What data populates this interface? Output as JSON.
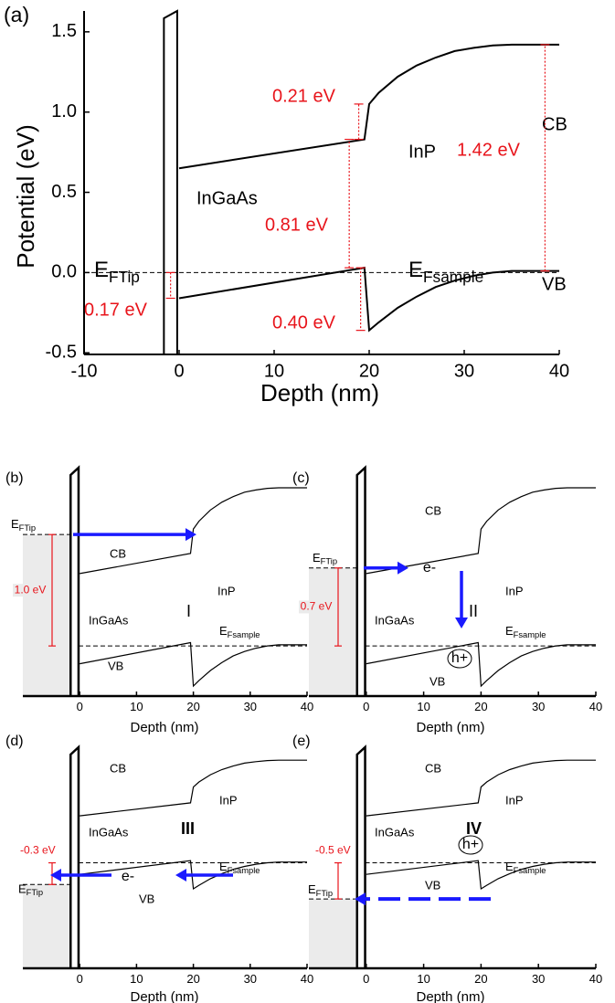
{
  "chart_data": [
    {
      "type": "line",
      "panel_label": "(a)",
      "x_label": "Depth (nm)",
      "y_label": "Potential (eV)",
      "xlim": [
        -10,
        40
      ],
      "xticks": [
        -10,
        0,
        10,
        20,
        30,
        40
      ],
      "ylim": [
        -0.51,
        1.63
      ],
      "yticks": [
        -0.5,
        {
          "value": 0,
          "label": "0.0"
        },
        0.5,
        {
          "value": 1,
          "label": "1.0"
        },
        1.5
      ],
      "x": [
        0,
        19.5,
        20,
        21,
        23,
        25,
        27,
        29,
        31,
        33,
        35,
        37,
        40
      ],
      "series": [
        {
          "name": "CB",
          "color": "#000000",
          "values": [
            0.65,
            0.83,
            1.05,
            1.12,
            1.22,
            1.29,
            1.34,
            1.38,
            1.4,
            1.415,
            1.42,
            1.42,
            1.42
          ]
        },
        {
          "name": "VB",
          "color": "#000000",
          "values": [
            -0.16,
            0.03,
            -0.36,
            -0.31,
            -0.22,
            -0.15,
            -0.09,
            -0.05,
            -0.02,
            0.0,
            0.01,
            0.01,
            0.01
          ]
        }
      ],
      "fermi_level": 0,
      "labels": {
        "ef_tip": [
          "E",
          "FTip"
        ],
        "ef_sample": [
          "E",
          "Fsample"
        ],
        "ingaas": "InGaAs",
        "inp": "InP"
      },
      "annotations": [
        "0.21 eV",
        "0.81 eV",
        "0.40 eV",
        "0.17 eV",
        "1.42 eV"
      ]
    },
    {
      "type": "line",
      "panel_label": "(b)",
      "x_label": "Depth (nm)",
      "xlim": [
        -10,
        40
      ],
      "xticks": [
        0,
        10,
        20,
        30,
        40
      ],
      "ylim": [
        -0.45,
        1.6
      ],
      "x": [
        0,
        19.5,
        20,
        21,
        23,
        25,
        27,
        29,
        31,
        33,
        35,
        37,
        40
      ],
      "series": [
        {
          "name": "CB",
          "color": "#000000",
          "values": [
            0.65,
            0.83,
            1.05,
            1.12,
            1.22,
            1.29,
            1.34,
            1.38,
            1.4,
            1.415,
            1.42,
            1.42,
            1.42
          ]
        },
        {
          "name": "VB",
          "color": "#000000",
          "values": [
            -0.16,
            0.03,
            -0.36,
            -0.31,
            -0.22,
            -0.15,
            -0.09,
            -0.05,
            -0.02,
            0.0,
            0.01,
            0.01,
            0.01
          ]
        }
      ],
      "fermi_level": 0,
      "tip_level": 1.0,
      "tip_label": "1.0 eV",
      "labels": {
        "ef_tip": [
          "E",
          "FTip"
        ],
        "ef_sample": [
          "E",
          "Fsample"
        ],
        "ingaas": "InGaAs",
        "inp": "InP",
        "stage": "I"
      },
      "carriers": []
    },
    {
      "type": "line",
      "panel_label": "(c)",
      "x_label": "Depth (nm)",
      "xlim": [
        -10,
        40
      ],
      "xticks": [
        0,
        10,
        20,
        30,
        40
      ],
      "ylim": [
        -0.45,
        1.6
      ],
      "x": [
        0,
        19.5,
        20,
        21,
        23,
        25,
        27,
        29,
        31,
        33,
        35,
        37,
        40
      ],
      "series": [
        {
          "name": "CB",
          "color": "#000000",
          "values": [
            0.65,
            0.83,
            1.05,
            1.12,
            1.22,
            1.29,
            1.34,
            1.38,
            1.4,
            1.415,
            1.42,
            1.42,
            1.42
          ]
        },
        {
          "name": "VB",
          "color": "#000000",
          "values": [
            -0.16,
            0.03,
            -0.36,
            -0.31,
            -0.22,
            -0.15,
            -0.09,
            -0.05,
            -0.02,
            0.0,
            0.01,
            0.01,
            0.01
          ]
        }
      ],
      "fermi_level": 0,
      "tip_level": 0.7,
      "tip_label": "0.7 eV",
      "labels": {
        "ef_tip": [
          "E",
          "FTip"
        ],
        "ef_sample": [
          "E",
          "Fsample"
        ],
        "ingaas": "InGaAs",
        "inp": "InP",
        "stage": "II"
      },
      "carriers": [
        "e-",
        "h+"
      ]
    },
    {
      "type": "line",
      "panel_label": "(d)",
      "x_label": "Depth (nm)",
      "xlim": [
        -10,
        40
      ],
      "xticks": [
        0,
        10,
        20,
        30,
        40
      ],
      "ylim": [
        -1.46,
        1.6
      ],
      "x": [
        0,
        19.5,
        20,
        21,
        23,
        25,
        27,
        29,
        31,
        33,
        35,
        37,
        40
      ],
      "series": [
        {
          "name": "CB",
          "color": "#000000",
          "values": [
            0.65,
            0.83,
            1.05,
            1.12,
            1.22,
            1.29,
            1.34,
            1.38,
            1.4,
            1.415,
            1.42,
            1.42,
            1.42
          ]
        },
        {
          "name": "VB",
          "color": "#000000",
          "values": [
            -0.16,
            0.03,
            -0.36,
            -0.31,
            -0.22,
            -0.15,
            -0.09,
            -0.05,
            -0.02,
            0.0,
            0.01,
            0.01,
            0.01
          ]
        }
      ],
      "fermi_level": 0,
      "tip_level": -0.3,
      "tip_label": "-0.3 eV",
      "labels": {
        "ef_tip": [
          "E",
          "FTip"
        ],
        "ef_sample": [
          "E",
          "Fsample"
        ],
        "ingaas": "InGaAs",
        "inp": "InP",
        "stage": "III"
      },
      "carriers": [
        "e-"
      ]
    },
    {
      "type": "line",
      "panel_label": "(e)",
      "x_label": "Depth (nm)",
      "xlim": [
        -10,
        40
      ],
      "xticks": [
        0,
        10,
        20,
        30,
        40
      ],
      "ylim": [
        -1.46,
        1.6
      ],
      "x": [
        0,
        19.5,
        20,
        21,
        23,
        25,
        27,
        29,
        31,
        33,
        35,
        37,
        40
      ],
      "series": [
        {
          "name": "CB",
          "color": "#000000",
          "values": [
            0.65,
            0.83,
            1.05,
            1.12,
            1.22,
            1.29,
            1.34,
            1.38,
            1.4,
            1.415,
            1.42,
            1.42,
            1.42
          ]
        },
        {
          "name": "VB",
          "color": "#000000",
          "values": [
            -0.16,
            0.03,
            -0.36,
            -0.31,
            -0.22,
            -0.15,
            -0.09,
            -0.05,
            -0.02,
            0.0,
            0.01,
            0.01,
            0.01
          ]
        }
      ],
      "fermi_level": 0,
      "tip_level": -0.5,
      "tip_label": "-0.5 eV",
      "labels": {
        "ef_tip": [
          "E",
          "FTip"
        ],
        "ef_sample": [
          "E",
          "Fsample"
        ],
        "ingaas": "InGaAs",
        "inp": "InP",
        "stage": "IV"
      },
      "carriers": [
        "h+"
      ]
    }
  ]
}
